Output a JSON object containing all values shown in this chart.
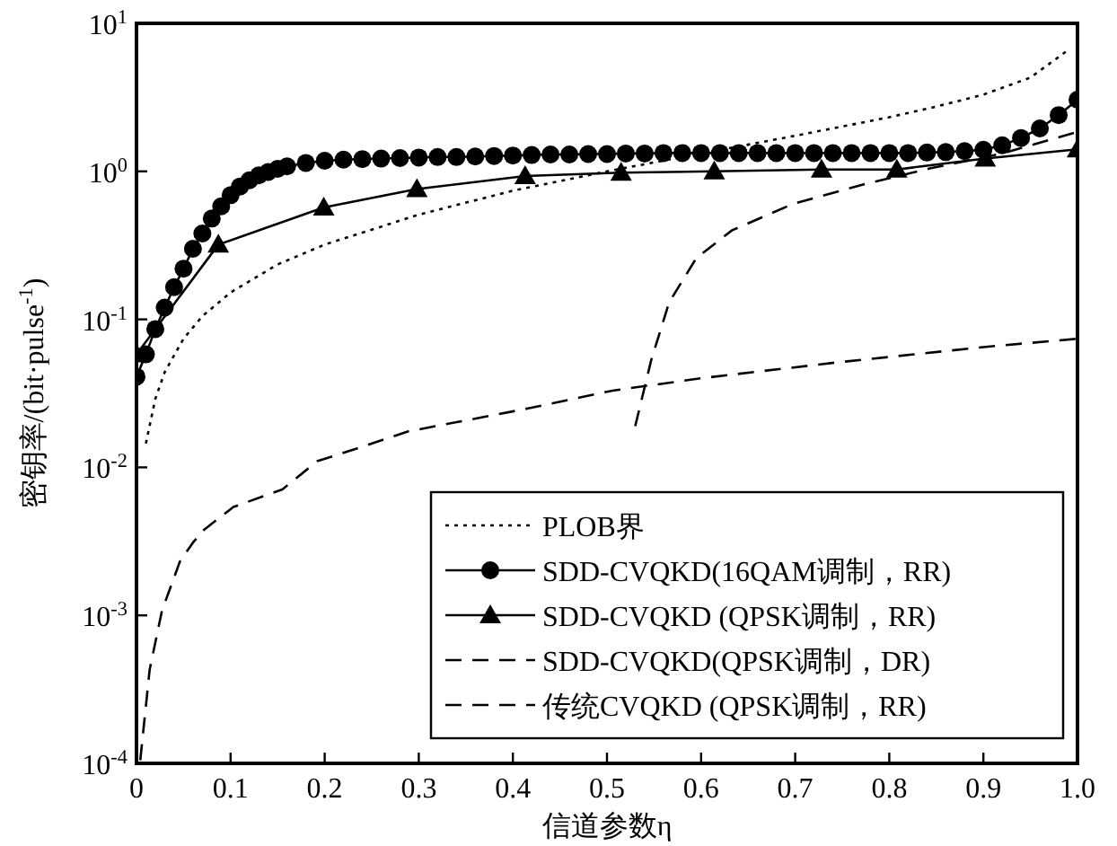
{
  "chart_data": {
    "type": "line",
    "xlabel": "信道参数η",
    "ylabel": "密钥率/(bit·pulse$^{-1}$)",
    "log": "y",
    "grid": false,
    "legend": "bottom right",
    "xlim": [
      0,
      1
    ],
    "ylim": [
      0.0001,
      10
    ],
    "xticks": [
      0,
      0.1,
      0.2,
      0.3,
      0.4,
      0.5,
      0.6,
      0.7,
      0.8,
      0.9,
      {
        "value": 1,
        "label": "1.0"
      }
    ],
    "yticks": [
      {
        "value": 0.0001,
        "label": "10$^{-4}$"
      },
      {
        "value": 0.001,
        "label": "10$^{-3}$"
      },
      {
        "value": 0.01,
        "label": "10$^{-2}$"
      },
      {
        "value": 0.1,
        "label": "10$^{-1}$"
      },
      {
        "value": 1,
        "label": "10$^{0}$"
      },
      {
        "value": 10,
        "label": "10$^{1}$"
      }
    ],
    "series": [
      {
        "name": "PLOB界",
        "color": "#000000",
        "line_style": "dotted",
        "marker": "none",
        "x": [
          0.01,
          0.02,
          0.03,
          0.05,
          0.07,
          0.1,
          0.15,
          0.2,
          0.3,
          0.4,
          0.5,
          0.6,
          0.7,
          0.8,
          0.85,
          0.9,
          0.95,
          0.99
        ],
        "values": [
          0.0145,
          0.029,
          0.044,
          0.074,
          0.105,
          0.152,
          0.235,
          0.32,
          0.51,
          0.74,
          1.0,
          1.32,
          1.74,
          2.32,
          2.74,
          3.3,
          4.3,
          6.6
        ]
      },
      {
        "name": "SDD-CVQKD(16QAM调制，RR)",
        "color": "#000000",
        "line_style": "solid",
        "marker": "circle",
        "x": [
          0,
          0.01,
          0.02,
          0.03,
          0.04,
          0.05,
          0.06,
          0.07,
          0.08,
          0.09,
          0.1,
          0.11,
          0.12,
          0.13,
          0.14,
          0.15,
          0.16,
          0.18,
          0.2,
          0.22,
          0.24,
          0.26,
          0.28,
          0.3,
          0.32,
          0.34,
          0.36,
          0.38,
          0.4,
          0.42,
          0.44,
          0.46,
          0.48,
          0.5,
          0.52,
          0.54,
          0.56,
          0.58,
          0.6,
          0.62,
          0.64,
          0.66,
          0.68,
          0.7,
          0.72,
          0.74,
          0.76,
          0.78,
          0.8,
          0.82,
          0.84,
          0.86,
          0.88,
          0.9,
          0.92,
          0.94,
          0.96,
          0.98,
          1.0
        ],
        "values": [
          0.041,
          0.058,
          0.086,
          0.12,
          0.165,
          0.22,
          0.3,
          0.38,
          0.48,
          0.58,
          0.69,
          0.79,
          0.87,
          0.94,
          0.99,
          1.04,
          1.08,
          1.14,
          1.18,
          1.2,
          1.21,
          1.22,
          1.23,
          1.24,
          1.25,
          1.25,
          1.26,
          1.27,
          1.28,
          1.29,
          1.3,
          1.3,
          1.31,
          1.31,
          1.32,
          1.32,
          1.33,
          1.33,
          1.33,
          1.33,
          1.33,
          1.33,
          1.33,
          1.33,
          1.33,
          1.33,
          1.33,
          1.33,
          1.33,
          1.33,
          1.34,
          1.35,
          1.37,
          1.4,
          1.5,
          1.68,
          1.95,
          2.4,
          3.05
        ]
      },
      {
        "name": "SDD-CVQKD (QPSK调制，RR)",
        "color": "#000000",
        "line_style": "solid",
        "marker": "triangle",
        "x": [
          0,
          0.087,
          0.199,
          0.298,
          0.413,
          0.515,
          0.614,
          0.728,
          0.808,
          0.902,
          1.0
        ],
        "values": [
          0.058,
          0.32,
          0.57,
          0.76,
          0.93,
          0.98,
          1.0,
          1.03,
          1.03,
          1.22,
          1.41
        ]
      },
      {
        "name": "SDD-CVQKD(QPSK调制，DR)",
        "color": "#000000",
        "line_style": "dashed",
        "marker": "none",
        "x": [
          0.53,
          0.547,
          0.566,
          0.595,
          0.633,
          0.697,
          0.774,
          0.844,
          0.92,
          1.0
        ],
        "values": [
          0.019,
          0.053,
          0.13,
          0.26,
          0.4,
          0.6,
          0.82,
          1.05,
          1.32,
          1.85
        ]
      },
      {
        "name": "传统CVQKD (QPSK调制，RR)",
        "color": "#000000",
        "line_style": "dashed",
        "marker": "none",
        "x": [
          0.004,
          0.014,
          0.027,
          0.046,
          0.06,
          0.072,
          0.103,
          0.155,
          0.192,
          0.231,
          0.289,
          0.416,
          0.506,
          0.6,
          0.742,
          0.9,
          1.0
        ],
        "values": [
          0.000105,
          0.00043,
          0.00107,
          0.0023,
          0.0031,
          0.0038,
          0.0054,
          0.0071,
          0.011,
          0.0132,
          0.0175,
          0.025,
          0.033,
          0.04,
          0.051,
          0.065,
          0.074
        ]
      }
    ]
  }
}
